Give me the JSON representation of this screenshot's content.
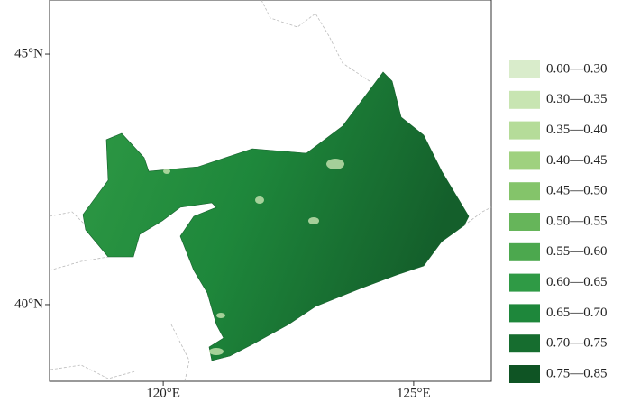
{
  "map": {
    "lon_range": [
      117.73,
      126.55
    ],
    "lat_range": [
      38.47,
      46.08
    ],
    "lat_ticks": [
      {
        "value": 45,
        "label": "45°N"
      },
      {
        "value": 40,
        "label": "40°N"
      }
    ],
    "lon_ticks": [
      {
        "value": 120,
        "label": "120°E"
      },
      {
        "value": 125,
        "label": "125°E"
      }
    ],
    "legend": [
      {
        "label": "0.00—0.30",
        "color": "#d9eccb"
      },
      {
        "label": "0.30—0.35",
        "color": "#c8e5b2"
      },
      {
        "label": "0.35—0.40",
        "color": "#b5dc99"
      },
      {
        "label": "0.40—0.45",
        "color": "#9fd17f"
      },
      {
        "label": "0.45—0.50",
        "color": "#84c46a"
      },
      {
        "label": "0.50—0.55",
        "color": "#66b55a"
      },
      {
        "label": "0.55—0.60",
        "color": "#4ca84e"
      },
      {
        "label": "0.60—0.65",
        "color": "#2f9a45"
      },
      {
        "label": "0.65—0.70",
        "color": "#1e873b"
      },
      {
        "label": "0.70—0.75",
        "color": "#166d2f"
      },
      {
        "label": "0.75—0.85",
        "color": "#0f5424"
      }
    ]
  }
}
